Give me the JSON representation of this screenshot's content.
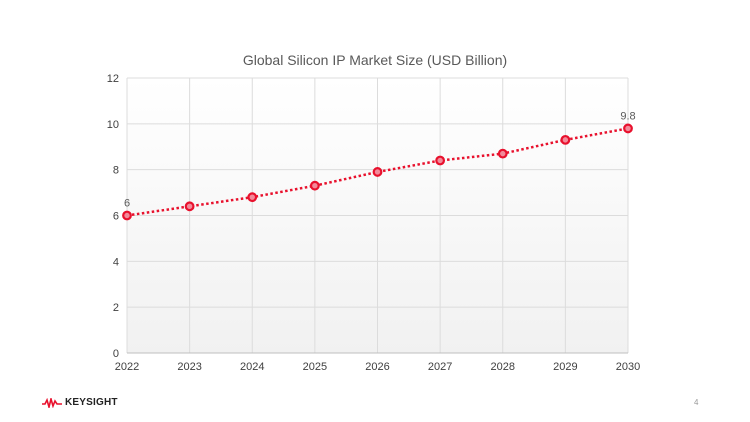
{
  "chart_data": {
    "type": "line",
    "title": "Global Silicon IP Market Size (USD Billion)",
    "categories": [
      "2022",
      "2023",
      "2024",
      "2025",
      "2026",
      "2027",
      "2028",
      "2029",
      "2030"
    ],
    "values": [
      6,
      6.4,
      6.8,
      7.3,
      7.9,
      8.4,
      8.7,
      9.3,
      9.8
    ],
    "data_labels": {
      "0": "6",
      "8": "9.8"
    },
    "ylim": [
      0,
      12
    ],
    "yticks": [
      0,
      2,
      4,
      6,
      8,
      10,
      12
    ],
    "grid": true,
    "legend": "none",
    "line_style": "dotted",
    "color": "#e8112d"
  },
  "footer": {
    "brand": "KEYSIGHT",
    "page_number": "4"
  }
}
